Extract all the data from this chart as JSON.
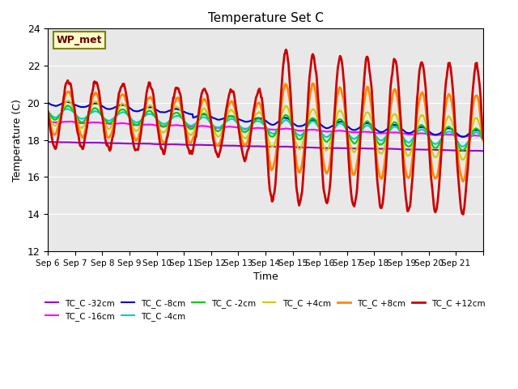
{
  "title": "Temperature Set C",
  "xlabel": "Time",
  "ylabel": "Temperature (C)",
  "ylim": [
    12,
    24
  ],
  "yticks": [
    12,
    14,
    16,
    18,
    20,
    22,
    24
  ],
  "background_color": "#e8e8e8",
  "wp_met_label": "WP_met",
  "wp_met_bg": "#ffffcc",
  "wp_met_border": "#808000",
  "series_order": [
    "TC_C -32cm",
    "TC_C -16cm",
    "TC_C -8cm",
    "TC_C -4cm",
    "TC_C -2cm",
    "TC_C +4cm",
    "TC_C +8cm",
    "TC_C +12cm"
  ],
  "series_colors": [
    "#9900cc",
    "#ff00ff",
    "#0000cc",
    "#00cccc",
    "#00cc00",
    "#cccc00",
    "#ff8800",
    "#cc0000"
  ],
  "series_linewidths": [
    1.5,
    1.5,
    1.5,
    1.5,
    1.5,
    1.5,
    2.0,
    2.0
  ],
  "xticklabels": [
    "Sep 6",
    "Sep 7",
    "Sep 8",
    "Sep 9",
    "Sep 10",
    "Sep 11",
    "Sep 12",
    "Sep 13",
    "Sep 14",
    "Sep 15",
    "Sep 16",
    "Sep 17",
    "Sep 18",
    "Sep 19",
    "Sep 20",
    "Sep 21",
    ""
  ],
  "n_days": 16,
  "points_per_day": 48
}
